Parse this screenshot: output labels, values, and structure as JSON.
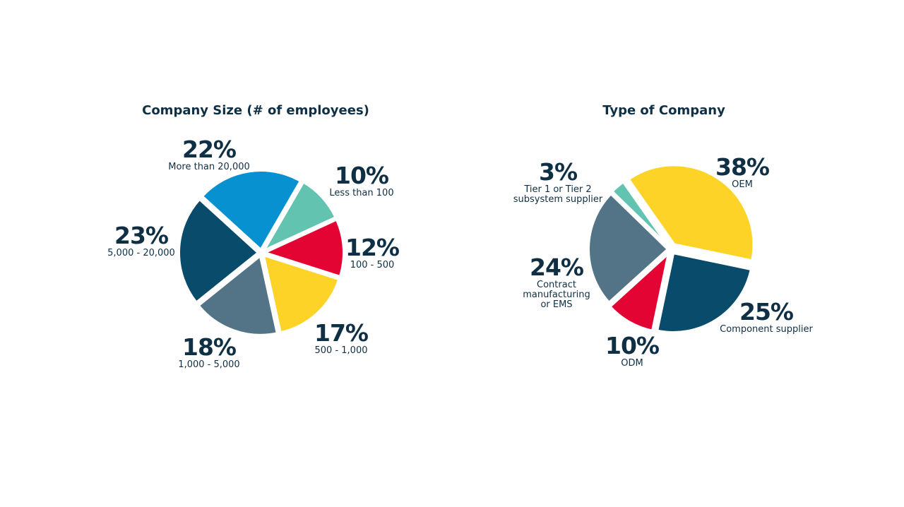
{
  "chart_data": [
    {
      "type": "pie",
      "title": "Company Size (# of employees)",
      "slices": [
        {
          "label": "Less than 100",
          "value": 10,
          "pct_text": "10%",
          "color": "#62c3b0"
        },
        {
          "label": "100 - 500",
          "value": 12,
          "pct_text": "12%",
          "color": "#e30434"
        },
        {
          "label": "500 - 1,000",
          "value": 17,
          "pct_text": "17%",
          "color": "#fdd328"
        },
        {
          "label": "1,000 - 5,000",
          "value": 18,
          "pct_text": "18%",
          "color": "#527486"
        },
        {
          "label": "5,000 - 20,000",
          "value": 23,
          "pct_text": "23%",
          "color": "#084b6b"
        },
        {
          "label": "More than 20,000",
          "value": 22,
          "pct_text": "22%",
          "color": "#0791d0"
        }
      ]
    },
    {
      "type": "pie",
      "title": "Type of Company",
      "slices": [
        {
          "label": "OEM",
          "value": 38,
          "pct_text": "38%",
          "color": "#fdd328"
        },
        {
          "label": "Component supplier",
          "value": 25,
          "pct_text": "25%",
          "color": "#084b6b"
        },
        {
          "label": "ODM",
          "value": 10,
          "pct_text": "10%",
          "color": "#e30434"
        },
        {
          "label": "Contract\nmanufacturing\nor EMS",
          "value": 24,
          "pct_text": "24%",
          "color": "#527486"
        },
        {
          "label": "Tier 1 or Tier 2\nsubsystem supplier",
          "value": 3,
          "pct_text": "3%",
          "color": "#62c3b0"
        }
      ]
    }
  ]
}
